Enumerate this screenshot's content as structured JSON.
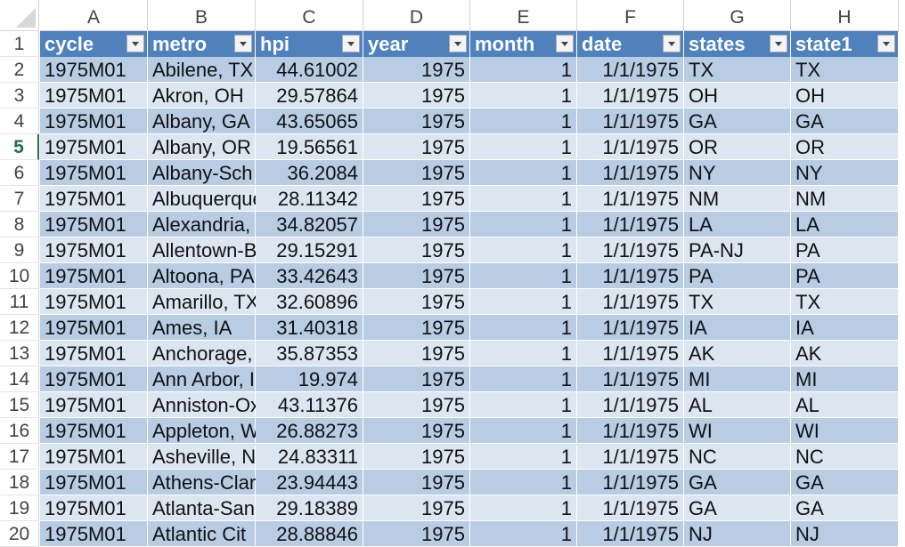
{
  "column_letters": [
    "A",
    "B",
    "C",
    "D",
    "E",
    "F",
    "G",
    "H"
  ],
  "table_headers": [
    "cycle",
    "metro",
    "hpi",
    "year",
    "month",
    "date",
    "states",
    "state1"
  ],
  "row_numbers": [
    "1",
    "2",
    "3",
    "4",
    "5",
    "6",
    "7",
    "8",
    "9",
    "10",
    "11",
    "12",
    "13",
    "14",
    "15",
    "16",
    "17",
    "18",
    "19",
    "20"
  ],
  "selected_row": "5",
  "rows": [
    [
      "1975M01",
      "Abilene, TX",
      "44.61002",
      "1975",
      "1",
      "1/1/1975",
      "TX",
      "TX"
    ],
    [
      "1975M01",
      "Akron, OH",
      "29.57864",
      "1975",
      "1",
      "1/1/1975",
      "OH",
      "OH"
    ],
    [
      "1975M01",
      "Albany, GA",
      "43.65065",
      "1975",
      "1",
      "1/1/1975",
      "GA",
      "GA"
    ],
    [
      "1975M01",
      "Albany, OR",
      "19.56561",
      "1975",
      "1",
      "1/1/1975",
      "OR",
      "OR"
    ],
    [
      "1975M01",
      "Albany-Sch",
      "36.2084",
      "1975",
      "1",
      "1/1/1975",
      "NY",
      "NY"
    ],
    [
      "1975M01",
      "Albuquerque",
      "28.11342",
      "1975",
      "1",
      "1/1/1975",
      "NM",
      "NM"
    ],
    [
      "1975M01",
      "Alexandria,",
      "34.82057",
      "1975",
      "1",
      "1/1/1975",
      "LA",
      "LA"
    ],
    [
      "1975M01",
      "Allentown-B",
      "29.15291",
      "1975",
      "1",
      "1/1/1975",
      "PA-NJ",
      "PA"
    ],
    [
      "1975M01",
      "Altoona, PA",
      "33.42643",
      "1975",
      "1",
      "1/1/1975",
      "PA",
      "PA"
    ],
    [
      "1975M01",
      "Amarillo, TX",
      "32.60896",
      "1975",
      "1",
      "1/1/1975",
      "TX",
      "TX"
    ],
    [
      "1975M01",
      "Ames, IA",
      "31.40318",
      "1975",
      "1",
      "1/1/1975",
      "IA",
      "IA"
    ],
    [
      "1975M01",
      "Anchorage,",
      "35.87353",
      "1975",
      "1",
      "1/1/1975",
      "AK",
      "AK"
    ],
    [
      "1975M01",
      "Ann Arbor, I",
      "19.974",
      "1975",
      "1",
      "1/1/1975",
      "MI",
      "MI"
    ],
    [
      "1975M01",
      "Anniston-Ox",
      "43.11376",
      "1975",
      "1",
      "1/1/1975",
      "AL",
      "AL"
    ],
    [
      "1975M01",
      "Appleton, W",
      "26.88273",
      "1975",
      "1",
      "1/1/1975",
      "WI",
      "WI"
    ],
    [
      "1975M01",
      "Asheville, N",
      "24.83311",
      "1975",
      "1",
      "1/1/1975",
      "NC",
      "NC"
    ],
    [
      "1975M01",
      "Athens-Clar",
      "23.94443",
      "1975",
      "1",
      "1/1/1975",
      "GA",
      "GA"
    ],
    [
      "1975M01",
      "Atlanta-San",
      "29.18389",
      "1975",
      "1",
      "1/1/1975",
      "GA",
      "GA"
    ],
    [
      "1975M01",
      "Atlantic Cit",
      "28.88846",
      "1975",
      "1",
      "1/1/1975",
      "NJ",
      "NJ"
    ]
  ]
}
